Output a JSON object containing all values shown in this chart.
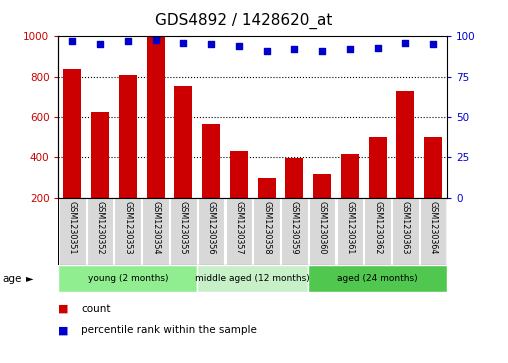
{
  "title": "GDS4892 / 1428620_at",
  "samples": [
    "GSM1230351",
    "GSM1230352",
    "GSM1230353",
    "GSM1230354",
    "GSM1230355",
    "GSM1230356",
    "GSM1230357",
    "GSM1230358",
    "GSM1230359",
    "GSM1230360",
    "GSM1230361",
    "GSM1230362",
    "GSM1230363",
    "GSM1230364"
  ],
  "counts": [
    840,
    625,
    810,
    1000,
    755,
    565,
    430,
    300,
    395,
    320,
    415,
    500,
    730,
    500
  ],
  "percentiles": [
    97,
    95,
    97,
    98,
    96,
    95,
    94,
    91,
    92,
    91,
    92,
    93,
    96,
    95
  ],
  "bar_color": "#cc0000",
  "dot_color": "#0000cc",
  "ylim_left": [
    200,
    1000
  ],
  "ylim_right": [
    0,
    100
  ],
  "yticks_left": [
    200,
    400,
    600,
    800,
    1000
  ],
  "yticks_right": [
    0,
    25,
    50,
    75,
    100
  ],
  "grid_values": [
    400,
    600,
    800
  ],
  "groups": [
    {
      "label": "young (2 months)",
      "start": 0,
      "end": 4,
      "color": "#90ee90"
    },
    {
      "label": "middle aged (12 months)",
      "start": 5,
      "end": 8,
      "color": "#c8f0c8"
    },
    {
      "label": "aged (24 months)",
      "start": 9,
      "end": 13,
      "color": "#50c850"
    }
  ],
  "age_label": "age",
  "legend_count": "count",
  "legend_pct": "percentile rank within the sample",
  "title_fontsize": 11,
  "axis_label_color_left": "#cc0000",
  "axis_label_color_right": "#0000cc",
  "bar_bottom": 200,
  "tick_area_color": "#d8d8d8",
  "bg_color": "#ffffff"
}
